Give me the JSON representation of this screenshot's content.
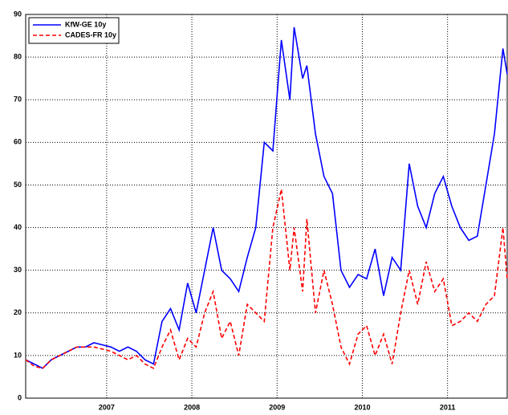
{
  "chart_data": {
    "type": "line",
    "x": [
      2006.05,
      2006.15,
      2006.25,
      2006.35,
      2006.45,
      2006.55,
      2006.65,
      2006.75,
      2006.85,
      2006.95,
      2007.05,
      2007.15,
      2007.25,
      2007.35,
      2007.45,
      2007.55,
      2007.65,
      2007.75,
      2007.85,
      2007.95,
      2008.05,
      2008.15,
      2008.25,
      2008.35,
      2008.45,
      2008.55,
      2008.65,
      2008.75,
      2008.85,
      2008.95,
      2009.05,
      2009.15,
      2009.2,
      2009.3,
      2009.35,
      2009.45,
      2009.55,
      2009.65,
      2009.75,
      2009.85,
      2009.95,
      2010.05,
      2010.15,
      2010.25,
      2010.35,
      2010.45,
      2010.55,
      2010.65,
      2010.75,
      2010.85,
      2010.95,
      2011.05,
      2011.15,
      2011.25,
      2011.35,
      2011.45,
      2011.55,
      2011.65,
      2011.7
    ],
    "series": [
      {
        "name": "KfW-GE 10y",
        "color": "#0000ff",
        "dash": false,
        "values": [
          9,
          8,
          7,
          9,
          10,
          11,
          12,
          12,
          13,
          12.5,
          12,
          11,
          12,
          11,
          9,
          8,
          18,
          21,
          16,
          27,
          20,
          30,
          40,
          30,
          28,
          25,
          33,
          40,
          60,
          58,
          84,
          70,
          87,
          75,
          78,
          62,
          52,
          48,
          30,
          26,
          29,
          28,
          35,
          24,
          33,
          30,
          55,
          45,
          40,
          48,
          52,
          45,
          40,
          37,
          38,
          50,
          62,
          82,
          76
        ]
      },
      {
        "name": "CADES-FR 10y",
        "color": "#ff0000",
        "dash": true,
        "values": [
          9,
          7.5,
          7,
          9,
          10,
          11,
          12,
          12,
          12,
          11.5,
          11,
          10,
          9,
          10,
          8,
          7,
          12,
          16,
          9,
          14,
          12,
          20,
          25,
          14,
          18,
          10,
          22,
          20,
          18,
          40,
          49,
          30,
          40,
          25,
          42,
          20,
          30,
          22,
          12,
          8,
          15,
          17,
          10,
          15,
          8,
          20,
          30,
          22,
          32,
          25,
          28,
          17,
          18,
          20,
          18,
          22,
          24,
          40,
          28
        ]
      }
    ],
    "xlim": [
      2006.05,
      2011.7
    ],
    "xticks": [
      2007,
      2008,
      2009,
      2010,
      2011
    ],
    "ylim": [
      0,
      90
    ],
    "yticks": [
      0,
      10,
      20,
      30,
      40,
      50,
      60,
      70,
      80,
      90
    ],
    "grid": true,
    "legend": "upper left"
  }
}
